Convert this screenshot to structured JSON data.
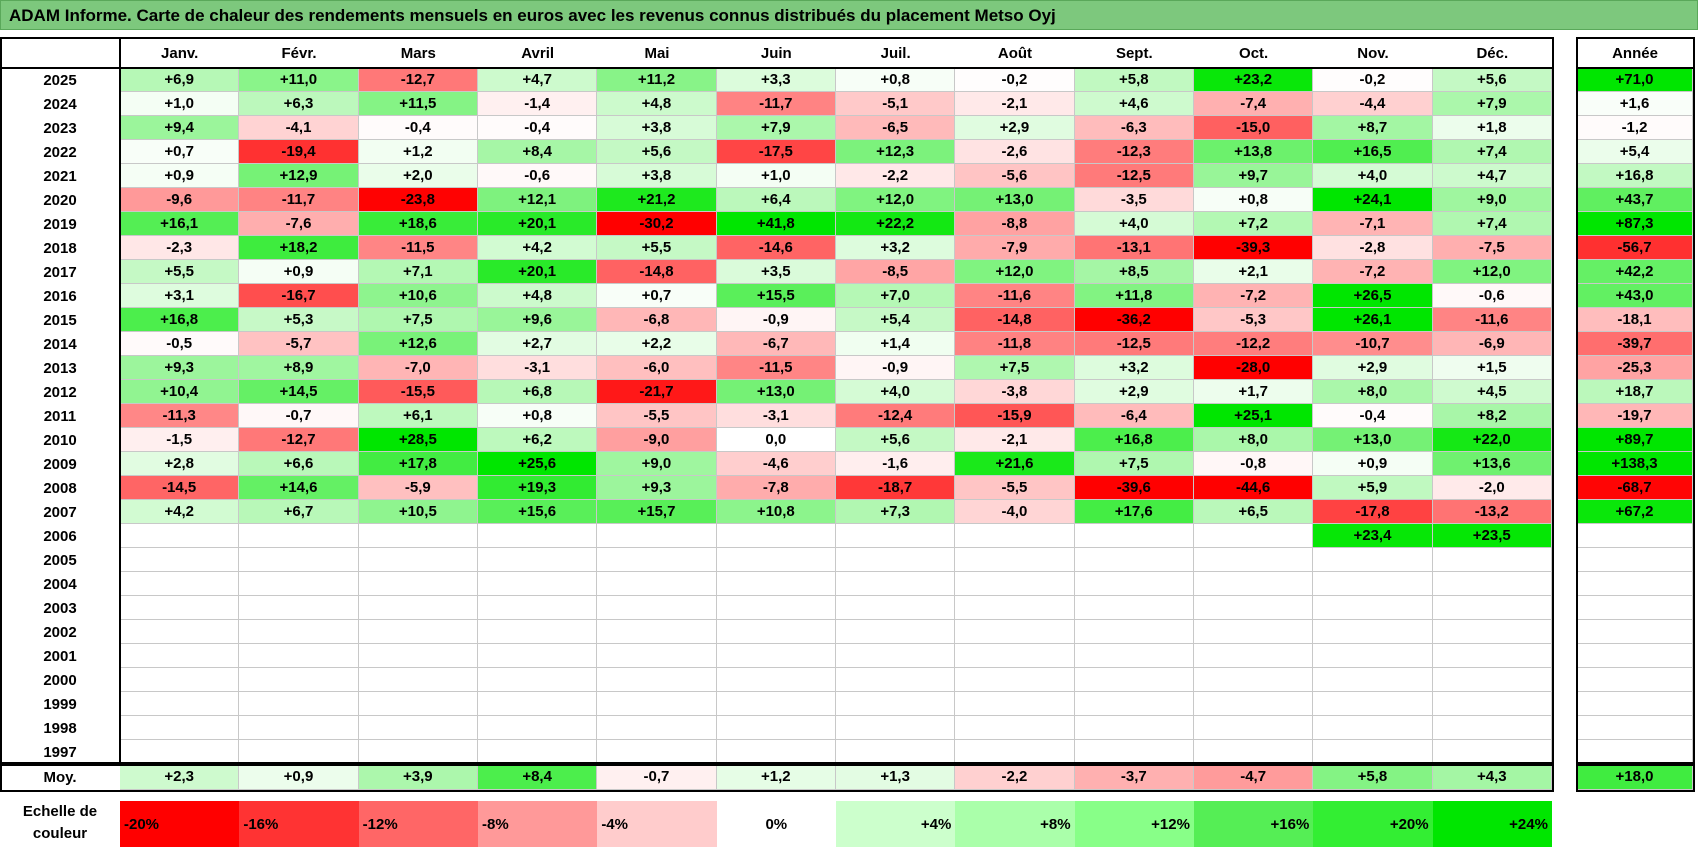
{
  "title": "ADAM Informe. Carte de chaleur des rendements mensuels en euros avec les revenus connus distribués du placement Metso Oyj",
  "chart_data": {
    "type": "heatmap",
    "months": [
      "Janv.",
      "Févr.",
      "Mars",
      "Avril",
      "Mai",
      "Juin",
      "Juil.",
      "Août",
      "Sept.",
      "Oct.",
      "Nov.",
      "Déc."
    ],
    "year_header": "Année",
    "rows": [
      {
        "year": "2025",
        "values": [
          "+6,9",
          "+11,0",
          "-12,7",
          "+4,7",
          "+11,2",
          "+3,3",
          "+0,8",
          "-0,2",
          "+5,8",
          "+23,2",
          "-0,2",
          "+5,6"
        ],
        "annual": "+71,0"
      },
      {
        "year": "2024",
        "values": [
          "+1,0",
          "+6,3",
          "+11,5",
          "-1,4",
          "+4,8",
          "-11,7",
          "-5,1",
          "-2,1",
          "+4,6",
          "-7,4",
          "-4,4",
          "+7,9"
        ],
        "annual": "+1,6"
      },
      {
        "year": "2023",
        "values": [
          "+9,4",
          "-4,1",
          "-0,4",
          "-0,4",
          "+3,8",
          "+7,9",
          "-6,5",
          "+2,9",
          "-6,3",
          "-15,0",
          "+8,7",
          "+1,8"
        ],
        "annual": "-1,2"
      },
      {
        "year": "2022",
        "values": [
          "+0,7",
          "-19,4",
          "+1,2",
          "+8,4",
          "+5,6",
          "-17,5",
          "+12,3",
          "-2,6",
          "-12,3",
          "+13,8",
          "+16,5",
          "+7,4"
        ],
        "annual": "+5,4"
      },
      {
        "year": "2021",
        "values": [
          "+0,9",
          "+12,9",
          "+2,0",
          "-0,6",
          "+3,8",
          "+1,0",
          "-2,2",
          "-5,6",
          "-12,5",
          "+9,7",
          "+4,0",
          "+4,7"
        ],
        "annual": "+16,8"
      },
      {
        "year": "2020",
        "values": [
          "-9,6",
          "-11,7",
          "-23,8",
          "+12,1",
          "+21,2",
          "+6,4",
          "+12,0",
          "+13,0",
          "-3,5",
          "+0,8",
          "+24,1",
          "+9,0"
        ],
        "annual": "+43,7"
      },
      {
        "year": "2019",
        "values": [
          "+16,1",
          "-7,6",
          "+18,6",
          "+20,1",
          "-30,2",
          "+41,8",
          "+22,2",
          "-8,8",
          "+4,0",
          "+7,2",
          "-7,1",
          "+7,4"
        ],
        "annual": "+87,3"
      },
      {
        "year": "2018",
        "values": [
          "-2,3",
          "+18,2",
          "-11,5",
          "+4,2",
          "+5,5",
          "-14,6",
          "+3,2",
          "-7,9",
          "-13,1",
          "-39,3",
          "-2,8",
          "-7,5"
        ],
        "annual": "-56,7"
      },
      {
        "year": "2017",
        "values": [
          "+5,5",
          "+0,9",
          "+7,1",
          "+20,1",
          "-14,8",
          "+3,5",
          "-8,5",
          "+12,0",
          "+8,5",
          "+2,1",
          "-7,2",
          "+12,0"
        ],
        "annual": "+42,2"
      },
      {
        "year": "2016",
        "values": [
          "+3,1",
          "-16,7",
          "+10,6",
          "+4,8",
          "+0,7",
          "+15,5",
          "+7,0",
          "-11,6",
          "+11,8",
          "-7,2",
          "+26,5",
          "-0,6"
        ],
        "annual": "+43,0"
      },
      {
        "year": "2015",
        "values": [
          "+16,8",
          "+5,3",
          "+7,5",
          "+9,6",
          "-6,8",
          "-0,9",
          "+5,4",
          "-14,8",
          "-36,2",
          "-5,3",
          "+26,1",
          "-11,6"
        ],
        "annual": "-18,1"
      },
      {
        "year": "2014",
        "values": [
          "-0,5",
          "-5,7",
          "+12,6",
          "+2,7",
          "+2,2",
          "-6,7",
          "+1,4",
          "-11,8",
          "-12,5",
          "-12,2",
          "-10,7",
          "-6,9"
        ],
        "annual": "-39,7"
      },
      {
        "year": "2013",
        "values": [
          "+9,3",
          "+8,9",
          "-7,0",
          "-3,1",
          "-6,0",
          "-11,5",
          "-0,9",
          "+7,5",
          "+3,2",
          "-28,0",
          "+2,9",
          "+1,5"
        ],
        "annual": "-25,3"
      },
      {
        "year": "2012",
        "values": [
          "+10,4",
          "+14,5",
          "-15,5",
          "+6,8",
          "-21,7",
          "+13,0",
          "+4,0",
          "-3,8",
          "+2,9",
          "+1,7",
          "+8,0",
          "+4,5"
        ],
        "annual": "+18,7"
      },
      {
        "year": "2011",
        "values": [
          "-11,3",
          "-0,7",
          "+6,1",
          "+0,8",
          "-5,5",
          "-3,1",
          "-12,4",
          "-15,9",
          "-6,4",
          "+25,1",
          "-0,4",
          "+8,2"
        ],
        "annual": "-19,7"
      },
      {
        "year": "2010",
        "values": [
          "-1,5",
          "-12,7",
          "+28,5",
          "+6,2",
          "-9,0",
          "0,0",
          "+5,6",
          "-2,1",
          "+16,8",
          "+8,0",
          "+13,0",
          "+22,0"
        ],
        "annual": "+89,7"
      },
      {
        "year": "2009",
        "values": [
          "+2,8",
          "+6,6",
          "+17,8",
          "+25,6",
          "+9,0",
          "-4,6",
          "-1,6",
          "+21,6",
          "+7,5",
          "-0,8",
          "+0,9",
          "+13,6"
        ],
        "annual": "+138,3"
      },
      {
        "year": "2008",
        "values": [
          "-14,5",
          "+14,6",
          "-5,9",
          "+19,3",
          "+9,3",
          "-7,8",
          "-18,7",
          "-5,5",
          "-39,6",
          "-44,6",
          "+5,9",
          "-2,0"
        ],
        "annual": "-68,7"
      },
      {
        "year": "2007",
        "values": [
          "+4,2",
          "+6,7",
          "+10,5",
          "+15,6",
          "+15,7",
          "+10,8",
          "+7,3",
          "-4,0",
          "+17,6",
          "+6,5",
          "-17,8",
          "-13,2"
        ],
        "annual": "+67,2"
      },
      {
        "year": "2006",
        "values": [
          "",
          "",
          "",
          "",
          "",
          "",
          "",
          "",
          "",
          "",
          "+23,4",
          "+23,5"
        ],
        "annual": ""
      },
      {
        "year": "2005",
        "values": [
          "",
          "",
          "",
          "",
          "",
          "",
          "",
          "",
          "",
          "",
          "",
          ""
        ],
        "annual": ""
      },
      {
        "year": "2004",
        "values": [
          "",
          "",
          "",
          "",
          "",
          "",
          "",
          "",
          "",
          "",
          "",
          ""
        ],
        "annual": ""
      },
      {
        "year": "2003",
        "values": [
          "",
          "",
          "",
          "",
          "",
          "",
          "",
          "",
          "",
          "",
          "",
          ""
        ],
        "annual": ""
      },
      {
        "year": "2002",
        "values": [
          "",
          "",
          "",
          "",
          "",
          "",
          "",
          "",
          "",
          "",
          "",
          ""
        ],
        "annual": ""
      },
      {
        "year": "2001",
        "values": [
          "",
          "",
          "",
          "",
          "",
          "",
          "",
          "",
          "",
          "",
          "",
          ""
        ],
        "annual": ""
      },
      {
        "year": "2000",
        "values": [
          "",
          "",
          "",
          "",
          "",
          "",
          "",
          "",
          "",
          "",
          "",
          ""
        ],
        "annual": ""
      },
      {
        "year": "1999",
        "values": [
          "",
          "",
          "",
          "",
          "",
          "",
          "",
          "",
          "",
          "",
          "",
          ""
        ],
        "annual": ""
      },
      {
        "year": "1998",
        "values": [
          "",
          "",
          "",
          "",
          "",
          "",
          "",
          "",
          "",
          "",
          "",
          ""
        ],
        "annual": ""
      },
      {
        "year": "1997",
        "values": [
          "",
          "",
          "",
          "",
          "",
          "",
          "",
          "",
          "",
          "",
          "",
          ""
        ],
        "annual": ""
      }
    ],
    "average": {
      "label": "Moy.",
      "values": [
        "+2,3",
        "+0,9",
        "+3,9",
        "+8,4",
        "-0,7",
        "+1,2",
        "+1,3",
        "-2,2",
        "-3,7",
        "-4,7",
        "+5,8",
        "+4,3"
      ],
      "annual": "+18,0"
    },
    "scale": {
      "label_line1": "Echelle de",
      "label_line2": "couleur",
      "stops": [
        {
          "label": "-20%",
          "color": "#ff0000"
        },
        {
          "label": "-16%",
          "color": "#ff3333"
        },
        {
          "label": "-12%",
          "color": "#ff6666"
        },
        {
          "label": "-8%",
          "color": "#ff9999"
        },
        {
          "label": "-4%",
          "color": "#ffcccc"
        },
        {
          "label": "0%",
          "color": "#ffffff"
        },
        {
          "label": "+4%",
          "color": "#ccffcc"
        },
        {
          "label": "+8%",
          "color": "#aaffaa"
        },
        {
          "label": "+12%",
          "color": "#88ff88"
        },
        {
          "label": "+16%",
          "color": "#55ee55"
        },
        {
          "label": "+20%",
          "color": "#33ee33"
        },
        {
          "label": "+24%",
          "color": "#00e600"
        }
      ]
    }
  }
}
